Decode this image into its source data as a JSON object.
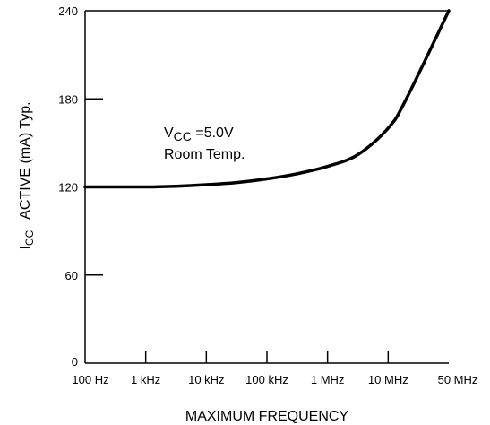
{
  "chart_data": {
    "type": "line",
    "xlabel": "MAXIMUM FREQUENCY",
    "ylabel": {
      "symbol": "I",
      "subscript": "CC",
      "rest": "ACTIVE (mA) Typ."
    },
    "ylim": [
      0,
      240
    ],
    "yticks": [
      {
        "value": 0,
        "label": "0"
      },
      {
        "value": 60,
        "label": "60"
      },
      {
        "value": 120,
        "label": "120"
      },
      {
        "value": 180,
        "label": "180"
      },
      {
        "value": 240,
        "label": "240"
      }
    ],
    "xticks": [
      {
        "index": 0,
        "label": "100 Hz"
      },
      {
        "index": 1,
        "label": "1 kHz"
      },
      {
        "index": 2,
        "label": "10 kHz"
      },
      {
        "index": 3,
        "label": "100 kHz"
      },
      {
        "index": 4,
        "label": "1 MHz"
      },
      {
        "index": 5,
        "label": "10 MHz"
      },
      {
        "index": 6,
        "label": "50 MHz"
      }
    ],
    "x_scale": "log-like frequency",
    "grid": false,
    "series": [
      {
        "color": "#000000",
        "points": [
          {
            "x": 0,
            "y": 120
          },
          {
            "x": 0.5,
            "y": 120
          },
          {
            "x": 1,
            "y": 120
          },
          {
            "x": 1.5,
            "y": 120.5
          },
          {
            "x": 2,
            "y": 121.5
          },
          {
            "x": 2.5,
            "y": 123
          },
          {
            "x": 3,
            "y": 125.5
          },
          {
            "x": 3.5,
            "y": 129
          },
          {
            "x": 4,
            "y": 134
          },
          {
            "x": 4.5,
            "y": 142
          },
          {
            "x": 5,
            "y": 160
          },
          {
            "x": 5.3,
            "y": 180
          },
          {
            "x": 6,
            "y": 240
          }
        ]
      }
    ],
    "annotations": [
      {
        "symbol": "V",
        "subscript": "CC",
        "rest": " =5.0V"
      },
      {
        "text": "Room Temp."
      }
    ]
  }
}
